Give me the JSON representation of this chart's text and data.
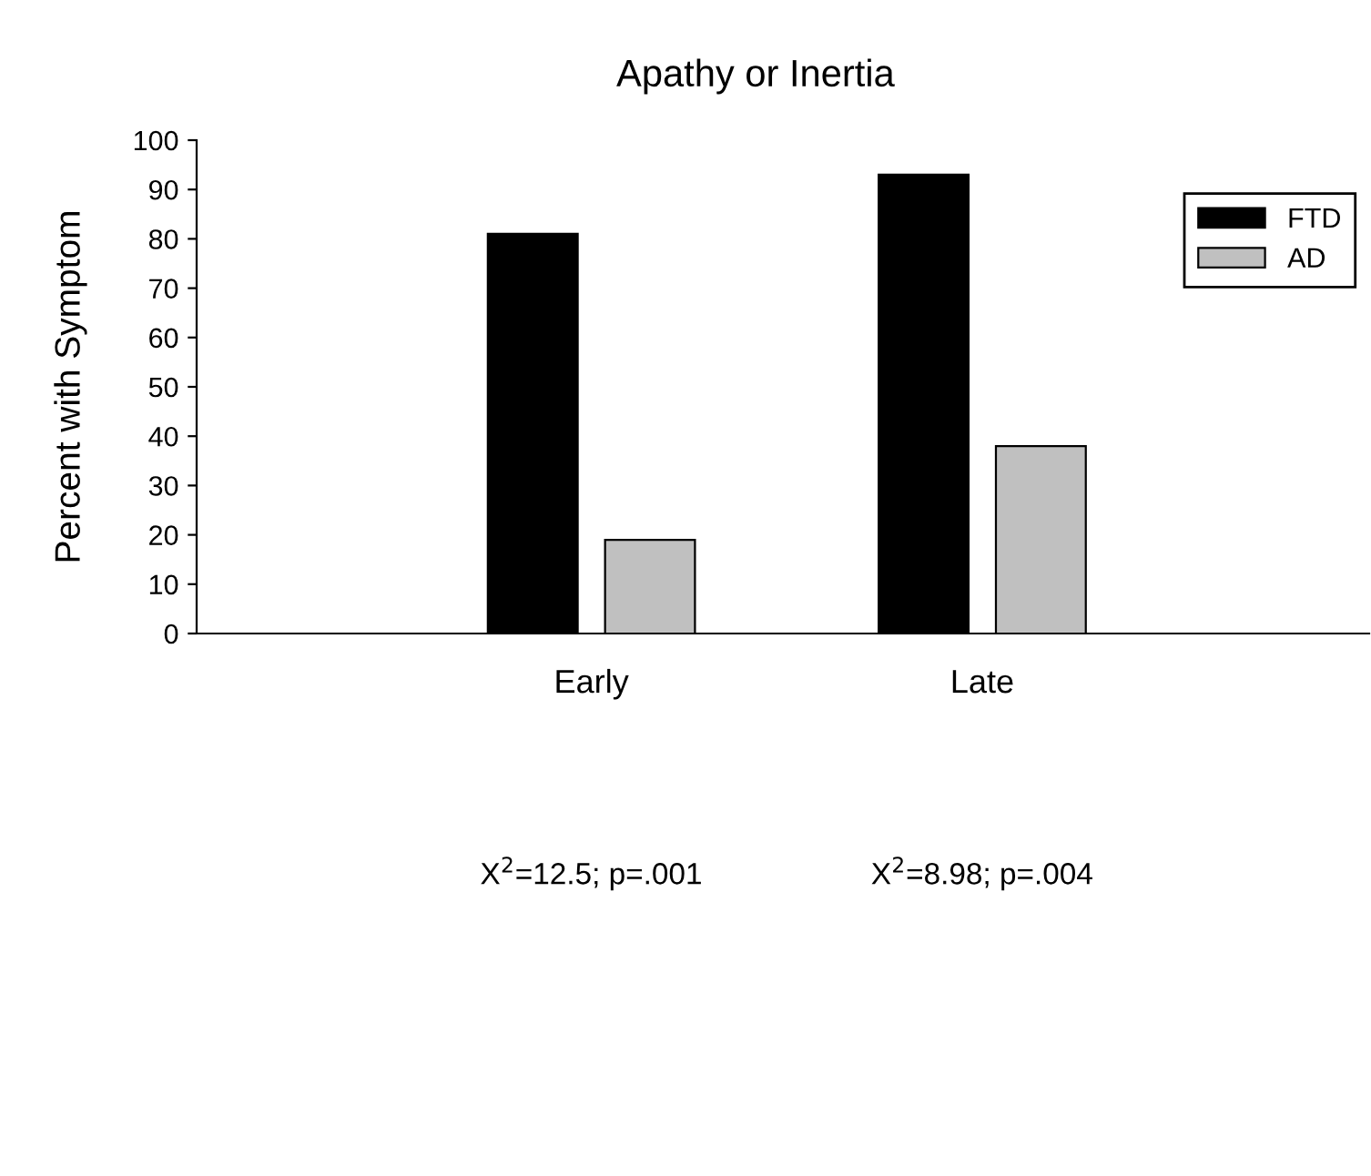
{
  "chart_data": {
    "type": "bar",
    "title": "Apathy or Inertia",
    "ylabel": "Percent with Symptom",
    "categories": [
      "Early",
      "Late"
    ],
    "series": [
      {
        "name": "FTD",
        "color": "#000000",
        "values": [
          81,
          93
        ]
      },
      {
        "name": "AD",
        "color": "#c0c0c0",
        "values": [
          19,
          38
        ]
      }
    ],
    "ylim": [
      0,
      100
    ],
    "yticks": [
      0,
      10,
      20,
      30,
      40,
      50,
      60,
      70,
      80,
      90,
      100
    ],
    "grid": false,
    "legend": "top right",
    "annotations": [
      "X$^{2}$=12.5; p=.001",
      "X$^{2}$=8.98; p=.004"
    ]
  }
}
